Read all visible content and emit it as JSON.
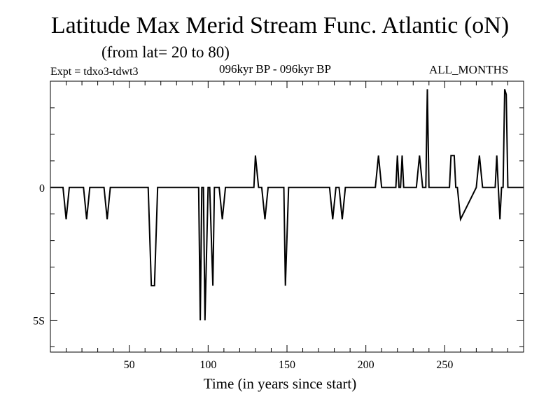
{
  "title": "Latitude Max Merid Stream Func. Atlantic (oN)",
  "subtitle": "(from lat= 20 to 80)",
  "expt_label": "Expt = tdxo3-tdwt3",
  "period_label": "096kyr BP - 096kyr BP",
  "months_label": "ALL_MONTHS",
  "chart_data": {
    "type": "line",
    "title": "Latitude Max Merid Stream Func. Atlantic (oN)",
    "xlabel": "Time (in years since start)",
    "ylabel": "",
    "xlim": [
      0,
      300
    ],
    "ylim": [
      -6.2,
      4
    ],
    "x_ticks": [
      50,
      100,
      150,
      200,
      250
    ],
    "x_tick_labels": [
      "50",
      "100",
      "150",
      "200",
      "250"
    ],
    "y_ticks": [
      0,
      -5
    ],
    "y_tick_labels": [
      "0",
      "5S"
    ],
    "grid": false,
    "series": [
      {
        "name": "",
        "color": "#000000",
        "x": [
          0,
          8,
          10,
          12,
          21,
          23,
          25,
          34,
          36,
          38,
          62,
          64,
          66,
          68,
          94,
          95,
          96,
          97,
          98,
          100,
          101,
          103,
          104,
          105,
          107,
          109,
          111,
          129,
          130,
          132,
          134,
          136,
          138,
          148,
          149,
          151,
          177,
          179,
          181,
          183,
          185,
          187,
          206,
          208,
          210,
          219,
          220,
          221,
          222,
          223,
          224,
          225,
          226,
          232,
          234,
          236,
          238,
          239,
          240,
          241,
          253,
          254,
          256,
          257,
          258,
          260,
          270,
          272,
          274,
          282,
          283,
          284,
          285,
          286,
          287,
          288,
          289,
          290,
          300
        ],
        "values": [
          0,
          0,
          -1.2,
          0,
          0,
          -1.2,
          0,
          0,
          -1.2,
          0,
          0,
          -3.7,
          -3.7,
          0,
          0,
          -5,
          0,
          0,
          -5,
          0,
          0,
          -3.7,
          0,
          0,
          0,
          -1.2,
          0,
          0,
          1.2,
          0,
          0,
          -1.2,
          0,
          0,
          -3.7,
          0,
          0,
          -1.2,
          0,
          0,
          -1.2,
          0,
          0,
          1.2,
          0,
          0,
          1.2,
          0,
          0,
          1.2,
          0,
          0,
          0,
          0,
          1.2,
          0,
          0,
          3.7,
          0,
          0,
          0,
          1.2,
          1.2,
          0,
          0,
          -1.2,
          0,
          1.2,
          0,
          0,
          1.2,
          0,
          -1.2,
          0,
          0,
          3.7,
          3.5,
          0,
          0
        ]
      }
    ]
  }
}
